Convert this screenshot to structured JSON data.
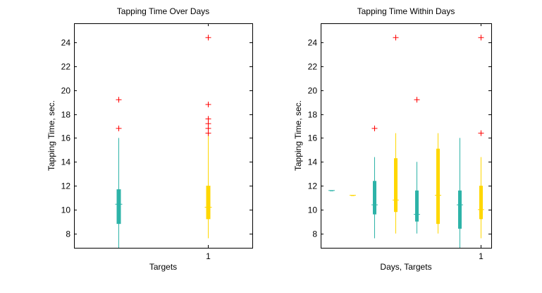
{
  "chart_data": [
    {
      "type": "boxplot",
      "title": "Tapping Time Over Days",
      "xlabel": "Targets",
      "ylabel": "Tapping Time, sec.",
      "ylim": [
        6.8,
        25.6
      ],
      "yticks": [
        8,
        10,
        12,
        14,
        16,
        18,
        20,
        22,
        24
      ],
      "xticks": [
        {
          "x": 2,
          "label": "1"
        }
      ],
      "xlim": [
        0.5,
        2.5
      ],
      "boxes": [
        {
          "x": 1,
          "color": "#2db3a8",
          "whisker_low": 6.8,
          "q1": 8.8,
          "median": 10.45,
          "q3": 11.7,
          "whisker_high": 16.0,
          "outliers": [
            16.8,
            19.2
          ]
        },
        {
          "x": 2,
          "color": "#ffd700",
          "whisker_low": 7.6,
          "q1": 9.2,
          "median": 10.2,
          "q3": 12.0,
          "whisker_high": 16.2,
          "outliers": [
            16.4,
            16.8,
            17.2,
            17.6,
            18.8,
            24.4
          ]
        }
      ]
    },
    {
      "type": "boxplot",
      "title": "Tapping Time Within Days",
      "xlabel": "Days, Targets",
      "ylabel": "Tapping Time, sec.",
      "ylim": [
        6.8,
        25.6
      ],
      "yticks": [
        8,
        10,
        12,
        14,
        16,
        18,
        20,
        22,
        24
      ],
      "xticks": [
        {
          "x": 8,
          "label": "1"
        }
      ],
      "xlim": [
        0.5,
        8.5
      ],
      "boxes": [
        {
          "x": 1,
          "color": "#2db3a8",
          "whisker_low": 11.6,
          "q1": 11.6,
          "median": 11.6,
          "q3": 11.6,
          "whisker_high": 11.6,
          "outliers": []
        },
        {
          "x": 2,
          "color": "#ffd700",
          "whisker_low": 11.2,
          "q1": 11.2,
          "median": 11.2,
          "q3": 11.2,
          "whisker_high": 11.2,
          "outliers": []
        },
        {
          "x": 3,
          "color": "#2db3a8",
          "whisker_low": 7.6,
          "q1": 9.6,
          "median": 10.4,
          "q3": 12.4,
          "whisker_high": 14.4,
          "outliers": [
            16.8
          ]
        },
        {
          "x": 4,
          "color": "#ffd700",
          "whisker_low": 8.0,
          "q1": 9.8,
          "median": 10.8,
          "q3": 14.3,
          "whisker_high": 16.4,
          "outliers": [
            24.4
          ]
        },
        {
          "x": 5,
          "color": "#2db3a8",
          "whisker_low": 8.0,
          "q1": 9.0,
          "median": 9.6,
          "q3": 11.6,
          "whisker_high": 14.0,
          "outliers": [
            19.2
          ]
        },
        {
          "x": 6,
          "color": "#ffd700",
          "whisker_low": 8.0,
          "q1": 8.8,
          "median": 11.2,
          "q3": 15.1,
          "whisker_high": 16.4,
          "outliers": []
        },
        {
          "x": 7,
          "color": "#2db3a8",
          "whisker_low": 6.8,
          "q1": 8.4,
          "median": 10.4,
          "q3": 11.6,
          "whisker_high": 16.0,
          "outliers": []
        },
        {
          "x": 8,
          "color": "#ffd700",
          "whisker_low": 7.6,
          "q1": 9.2,
          "median": 10.0,
          "q3": 12.0,
          "whisker_high": 14.4,
          "outliers": [
            16.4,
            24.4
          ]
        }
      ]
    }
  ],
  "colors": {
    "outlier": "#ff0000",
    "axis": "#000000",
    "background": "#ffffff"
  }
}
